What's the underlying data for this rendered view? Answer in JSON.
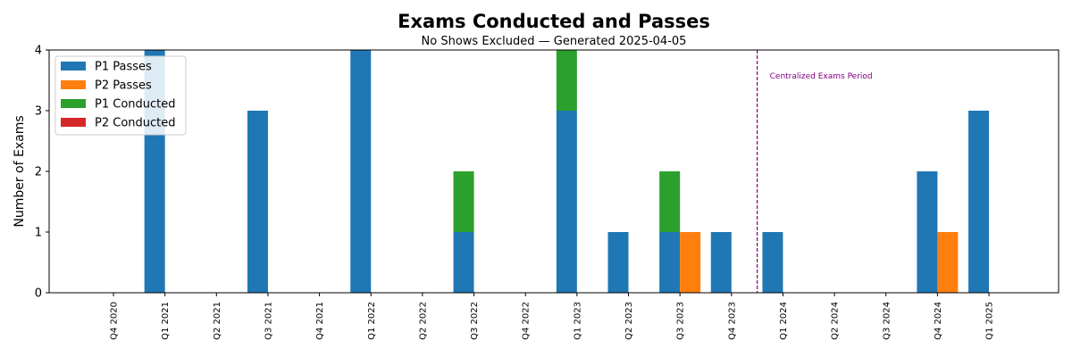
{
  "chart_data": {
    "type": "bar",
    "title": "Exams Conducted and Passes",
    "subtitle": "No Shows Excluded — Generated 2025-04-05",
    "xlabel": "",
    "ylabel": "Number of Exams",
    "ylim": [
      0,
      4
    ],
    "yticks": [
      0,
      1,
      2,
      3,
      4
    ],
    "categories": [
      "Q4 2020",
      "Q1 2021",
      "Q2 2021",
      "Q3 2021",
      "Q4 2021",
      "Q1 2022",
      "Q2 2022",
      "Q3 2022",
      "Q4 2022",
      "Q1 2023",
      "Q2 2023",
      "Q3 2023",
      "Q4 2023",
      "Q1 2024",
      "Q2 2024",
      "Q3 2024",
      "Q4 2024",
      "Q1 2025"
    ],
    "series": [
      {
        "name": "P1 Passes",
        "color": "#1f77b4",
        "values": [
          0,
          4,
          0,
          3,
          0,
          4,
          0,
          1,
          0,
          3,
          1,
          1,
          1,
          1,
          0,
          0,
          2,
          3
        ]
      },
      {
        "name": "P2 Passes",
        "color": "#ff7f0e",
        "values": [
          0,
          0,
          0,
          0,
          0,
          0,
          0,
          0,
          0,
          0,
          0,
          1,
          0,
          0,
          0,
          0,
          1,
          0
        ]
      },
      {
        "name": "P1 Conducted",
        "color": "#2ca02c",
        "values": [
          0,
          4,
          0,
          3,
          0,
          4,
          0,
          2,
          0,
          4,
          1,
          2,
          1,
          1,
          0,
          0,
          2,
          3
        ]
      },
      {
        "name": "P2 Conducted",
        "color": "#d62728",
        "values": [
          0,
          0,
          0,
          0,
          0,
          0,
          0,
          0,
          0,
          0,
          0,
          1,
          0,
          0,
          0,
          0,
          1,
          0
        ]
      }
    ],
    "annotation": {
      "text": "Centralized Exams Period",
      "after_category": "Q4 2023",
      "color": "#800080",
      "style": "dashed vertical line"
    },
    "legend": "top-left",
    "grid": false
  }
}
